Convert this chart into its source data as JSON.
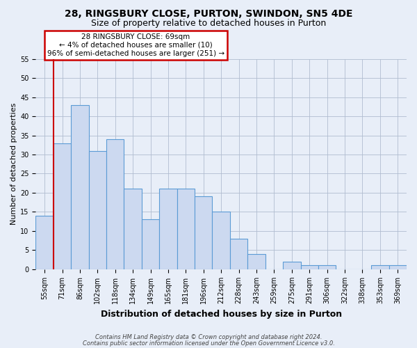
{
  "title1": "28, RINGSBURY CLOSE, PURTON, SWINDON, SN5 4DE",
  "title2": "Size of property relative to detached houses in Purton",
  "xlabel": "Distribution of detached houses by size in Purton",
  "ylabel": "Number of detached properties",
  "categories": [
    "55sqm",
    "71sqm",
    "86sqm",
    "102sqm",
    "118sqm",
    "134sqm",
    "149sqm",
    "165sqm",
    "181sqm",
    "196sqm",
    "212sqm",
    "228sqm",
    "243sqm",
    "259sqm",
    "275sqm",
    "291sqm",
    "306sqm",
    "322sqm",
    "338sqm",
    "353sqm",
    "369sqm"
  ],
  "values": [
    14,
    33,
    43,
    31,
    34,
    21,
    13,
    21,
    21,
    19,
    15,
    8,
    4,
    0,
    2,
    1,
    1,
    0,
    0,
    1,
    1
  ],
  "bar_color": "#ccd9f0",
  "bar_edge_color": "#5b9bd5",
  "annotation_text": "28 RINGSBURY CLOSE: 69sqm\n← 4% of detached houses are smaller (10)\n96% of semi-detached houses are larger (251) →",
  "annotation_box_color": "#ffffff",
  "annotation_edge_color": "#cc0000",
  "red_line_x": 0.5,
  "footnote1": "Contains HM Land Registry data © Crown copyright and database right 2024.",
  "footnote2": "Contains public sector information licensed under the Open Government Licence v3.0.",
  "ylim_max": 55,
  "background_color": "#e8eef8",
  "grid_color": "#b0bcd0",
  "title1_fontsize": 10,
  "title2_fontsize": 9,
  "xlabel_fontsize": 9,
  "ylabel_fontsize": 8,
  "tick_fontsize": 7,
  "footnote_fontsize": 6
}
